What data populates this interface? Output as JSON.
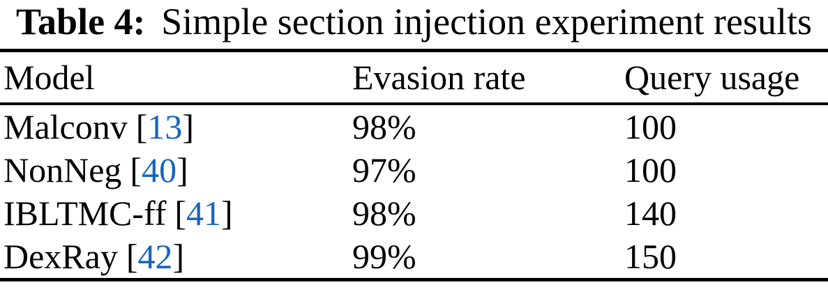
{
  "caption": {
    "label": "Table 4:",
    "text": "Simple section injection experiment results"
  },
  "table": {
    "headers": [
      "Model",
      "Evasion rate",
      "Query usage"
    ],
    "citation_open": "[",
    "citation_close": "]",
    "rows": [
      {
        "model": "Malconv",
        "citation": "13",
        "evasion_rate": "98%",
        "query_usage": "100"
      },
      {
        "model": "NonNeg",
        "citation": "40",
        "evasion_rate": "97%",
        "query_usage": "100"
      },
      {
        "model": "IBLTMC-ff",
        "citation": "41",
        "evasion_rate": "98%",
        "query_usage": "140"
      },
      {
        "model": "DexRay",
        "citation": "42",
        "evasion_rate": "99%",
        "query_usage": "150"
      }
    ]
  },
  "colors": {
    "background": "#ffffff",
    "text": "#000000",
    "rule": "#000000",
    "citation_link": "#1565c0"
  }
}
